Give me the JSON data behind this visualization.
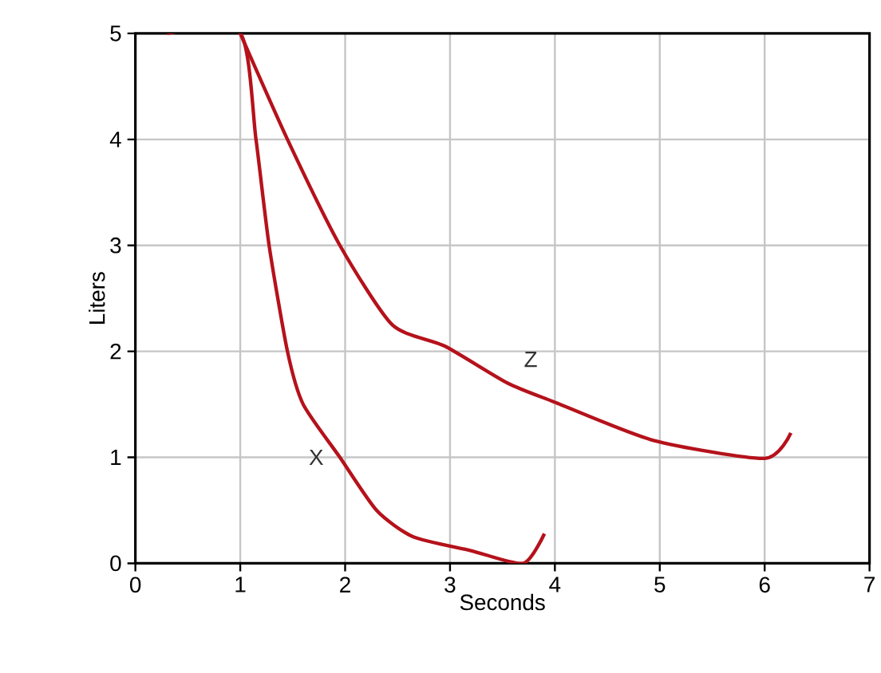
{
  "chart_data": {
    "type": "line",
    "xlabel": "Seconds",
    "ylabel": "Liters",
    "xlim": [
      0,
      7
    ],
    "ylim": [
      0,
      5
    ],
    "xticks": [
      0,
      1,
      2,
      3,
      4,
      5,
      6,
      7
    ],
    "yticks": [
      0,
      1,
      2,
      3,
      4,
      5
    ],
    "grid": true,
    "marker": "none",
    "line_style": "solid",
    "series": [
      {
        "color": "#b5121b",
        "x": [
          0.3,
          1,
          1.15,
          1.275,
          1.45,
          1.6,
          1.95,
          2.3,
          2.65,
          3.2,
          3.7,
          3.9
        ],
        "values": [
          5,
          5,
          4,
          3,
          2,
          1.5,
          1.0,
          0.5,
          0.25,
          0.12,
          0,
          0.28
        ]
      },
      {
        "color": "#b5121b",
        "x": [
          1,
          1.45,
          1.95,
          2.45,
          2.95,
          3.55,
          4.0,
          4.94,
          6.0,
          6.25
        ],
        "values": [
          5,
          4,
          3,
          2.25,
          2.05,
          1.7,
          1.52,
          1.16,
          0.99,
          1.23
        ]
      }
    ],
    "annotations": [
      "X",
      "Z"
    ]
  }
}
